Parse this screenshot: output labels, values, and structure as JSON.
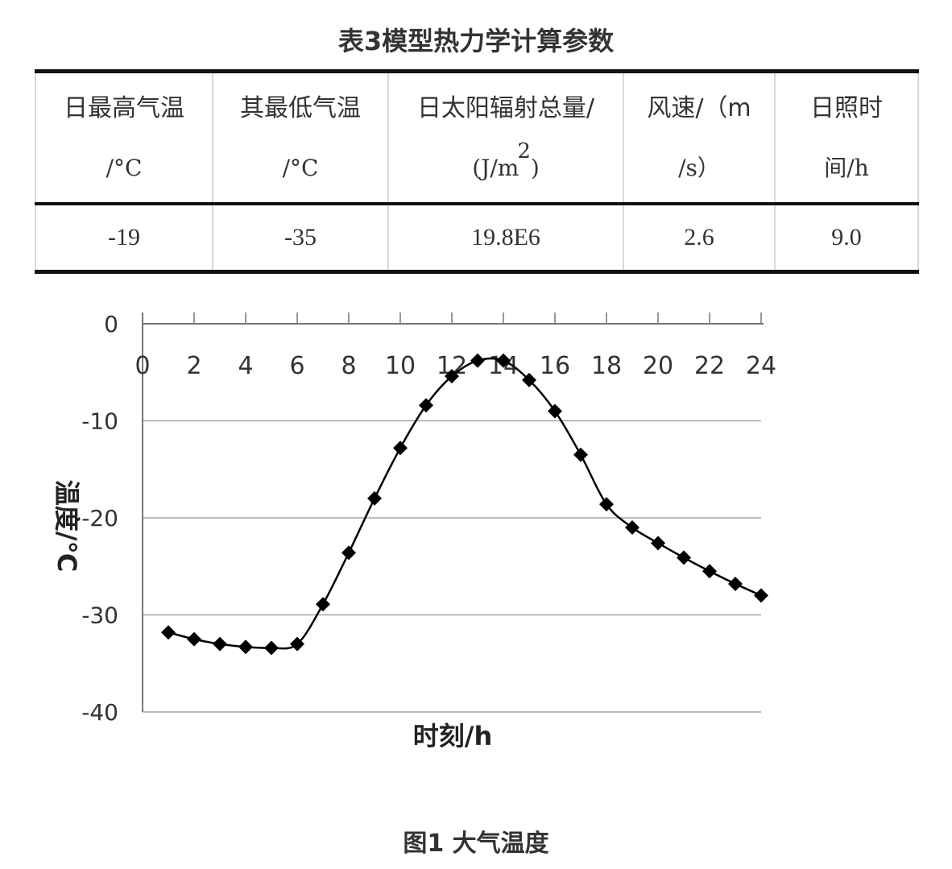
{
  "table": {
    "caption": "表3模型热力学计算参数",
    "headers": [
      {
        "label": "日最高气温",
        "unit": "/°C"
      },
      {
        "label": "其最低气温",
        "unit": "/°C"
      },
      {
        "label": "日太阳辐射总量/",
        "unit_prefix": "(J/m",
        "unit_sup": "2",
        "unit_suffix": ")"
      },
      {
        "label": "风速/（m",
        "unit": "/s）"
      },
      {
        "label": "日照时",
        "unit": "间/h"
      }
    ],
    "row": [
      "-19",
      "-35",
      "19.8E6",
      "2.6",
      "9.0"
    ]
  },
  "figure": {
    "caption": "图1 大气温度"
  },
  "chart_data": {
    "type": "line",
    "xlabel": "时刻/h",
    "ylabel": "温度/℃",
    "xlim": [
      0,
      24
    ],
    "ylim": [
      -40,
      0
    ],
    "xticks": [
      "0",
      "2",
      "4",
      "6",
      "8",
      "10",
      "12",
      "14",
      "16",
      "18",
      "20",
      "22",
      "24"
    ],
    "yticks": [
      "0",
      "-10",
      "-20",
      "-30",
      "-40"
    ],
    "grid": "horizontal",
    "legend": "none",
    "series": [
      {
        "marker": "diamond",
        "color": "#000000",
        "x": [
          1,
          2,
          3,
          4,
          5,
          6,
          7,
          8,
          9,
          10,
          11,
          12,
          13,
          14,
          15,
          16,
          17,
          18,
          19,
          20,
          21,
          22,
          23,
          24
        ],
        "y": [
          -31.8,
          -32.5,
          -33.0,
          -33.3,
          -33.4,
          -33.0,
          -28.9,
          -23.6,
          -18.0,
          -12.8,
          -8.4,
          -5.4,
          -3.8,
          -3.8,
          -5.8,
          -9.0,
          -13.5,
          -18.6,
          -21.0,
          -22.6,
          -24.1,
          -25.5,
          -26.8,
          -28.0
        ]
      }
    ]
  }
}
